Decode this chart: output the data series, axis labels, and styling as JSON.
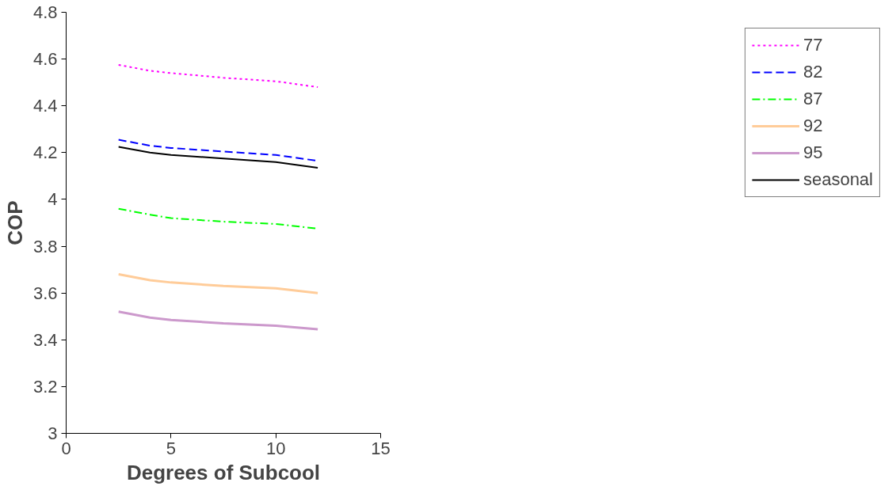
{
  "chart_data": {
    "type": "line",
    "xlabel": "Degrees of Subcool",
    "ylabel": "COP",
    "xlim": [
      0,
      15
    ],
    "xticks": [
      0,
      5,
      10,
      15
    ],
    "ylim": [
      3,
      4.8
    ],
    "yticks": [
      3,
      3.2,
      3.4,
      3.6,
      3.8,
      4,
      4.2,
      4.4,
      4.6,
      4.8
    ],
    "grid": false,
    "legend": "right",
    "marker": "none",
    "x": [
      2.5,
      4,
      5,
      7.5,
      10,
      12
    ],
    "series": [
      {
        "name": "77",
        "color": "#ff00ff",
        "line_style": "dotted",
        "values": [
          4.575,
          4.55,
          4.54,
          4.52,
          4.505,
          4.48
        ]
      },
      {
        "name": "82",
        "color": "#0000ff",
        "line_style": "dashed",
        "values": [
          4.255,
          4.23,
          4.22,
          4.205,
          4.19,
          4.165
        ]
      },
      {
        "name": "87",
        "color": "#00ff00",
        "line_style": "dashdot",
        "values": [
          3.96,
          3.935,
          3.92,
          3.905,
          3.895,
          3.875
        ]
      },
      {
        "name": "92",
        "color": "#ffcc99",
        "line_style": "solid",
        "values": [
          3.68,
          3.655,
          3.645,
          3.63,
          3.62,
          3.6
        ]
      },
      {
        "name": "95",
        "color": "#cc99cc",
        "line_style": "solid",
        "values": [
          3.52,
          3.495,
          3.485,
          3.47,
          3.46,
          3.445
        ]
      },
      {
        "name": "seasonal",
        "color": "#000000",
        "line_style": "solid",
        "values": [
          4.225,
          4.2,
          4.19,
          4.175,
          4.16,
          4.135
        ]
      }
    ]
  }
}
